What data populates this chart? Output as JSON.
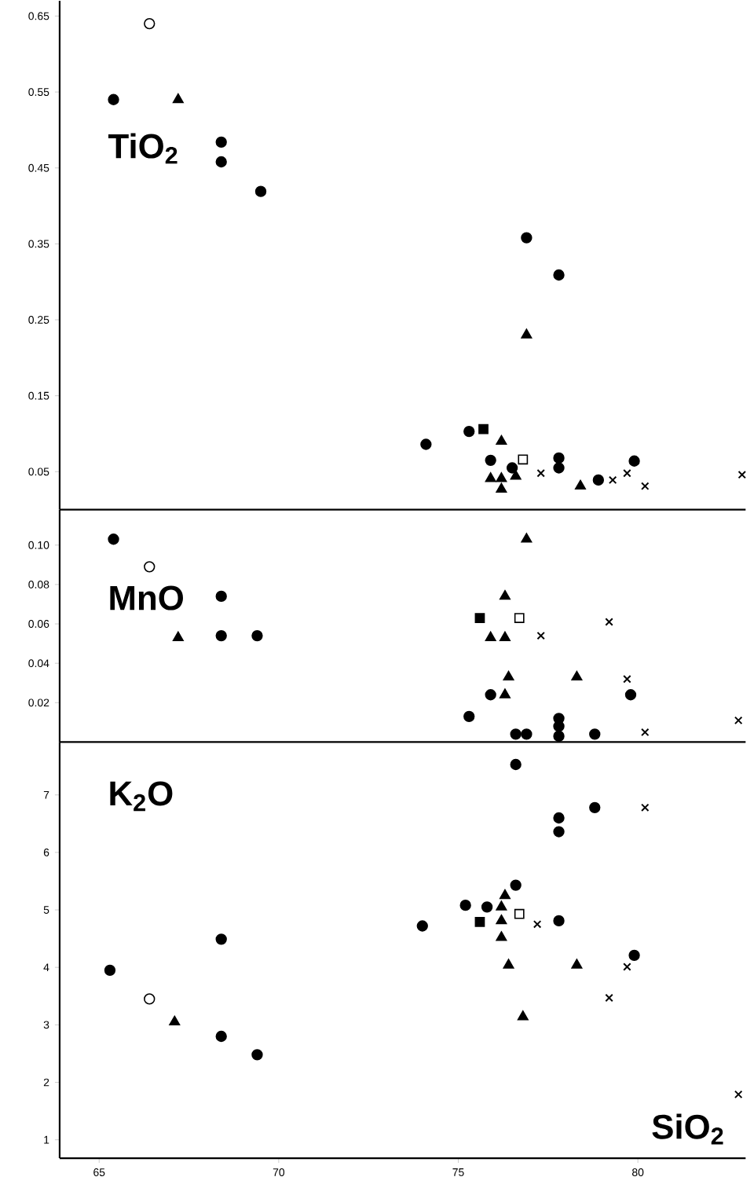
{
  "chart_data": [
    {
      "type": "scatter",
      "ylabel": "TiO$_{2}$",
      "xlim": [
        63.9,
        83.0
      ],
      "ylim": [
        0,
        0.67
      ],
      "yticks": [
        0.05,
        0.15,
        0.25,
        0.35,
        0.45,
        0.55,
        0.65
      ],
      "tick_labels": "y",
      "series": [
        {
          "marker": "circle",
          "color": "#000000",
          "x": [
            65.4,
            68.4,
            68.4,
            69.5,
            76.9,
            77.8,
            74.1,
            75.3,
            75.9,
            76.5,
            77.8,
            77.8,
            78.9,
            79.9
          ],
          "values": [
            0.54,
            0.484,
            0.458,
            0.419,
            0.358,
            0.309,
            0.086,
            0.103,
            0.065,
            0.055,
            0.068,
            0.055,
            0.039,
            0.064
          ]
        },
        {
          "marker": "circle",
          "color": "#ffffff",
          "x": [
            66.4
          ],
          "values": [
            0.64
          ]
        },
        {
          "marker": "triangle",
          "color": "#000000",
          "x": [
            67.2,
            76.9,
            76.2,
            75.9,
            76.2,
            76.2,
            76.6,
            78.4
          ],
          "values": [
            0.54,
            0.23,
            0.09,
            0.041,
            0.041,
            0.027,
            0.044,
            0.031
          ]
        },
        {
          "marker": "square",
          "color": "#000000",
          "x": [
            75.7
          ],
          "values": [
            0.106
          ]
        },
        {
          "marker": "square",
          "color": "#ffffff",
          "x": [
            76.8
          ],
          "values": [
            0.066
          ]
        },
        {
          "marker": "cross",
          "color": "#000000",
          "x": [
            77.3,
            79.3,
            79.7,
            80.2,
            82.9
          ],
          "values": [
            0.048,
            0.039,
            0.048,
            0.031,
            0.046
          ]
        }
      ]
    },
    {
      "type": "scatter",
      "ylabel": "MnO",
      "xlim": [
        63.9,
        83.0
      ],
      "ylim": [
        0,
        0.118
      ],
      "yticks": [
        0.02,
        0.04,
        0.06,
        0.08,
        {
          "value": 0.1,
          "label": "0.10"
        }
      ],
      "tick_labels": "y",
      "series": [
        {
          "marker": "circle",
          "color": "#000000",
          "x": [
            65.4,
            68.4,
            68.4,
            69.4,
            75.9,
            79.8,
            75.3,
            76.6,
            76.9,
            77.8,
            77.8,
            77.8,
            78.8
          ],
          "values": [
            0.103,
            0.074,
            0.054,
            0.054,
            0.024,
            0.024,
            0.013,
            0.004,
            0.004,
            0.012,
            0.008,
            0.003,
            0.004
          ]
        },
        {
          "marker": "circle",
          "color": "#ffffff",
          "x": [
            66.4
          ],
          "values": [
            0.089
          ]
        },
        {
          "marker": "triangle",
          "color": "#000000",
          "x": [
            67.2,
            76.9,
            76.3,
            75.9,
            76.3,
            76.4,
            78.3,
            76.3
          ],
          "values": [
            0.053,
            0.103,
            0.074,
            0.053,
            0.053,
            0.033,
            0.033,
            0.024
          ]
        },
        {
          "marker": "square",
          "color": "#000000",
          "x": [
            75.6
          ],
          "values": [
            0.063
          ]
        },
        {
          "marker": "square",
          "color": "#ffffff",
          "x": [
            76.7
          ],
          "values": [
            0.063
          ]
        },
        {
          "marker": "cross",
          "color": "#000000",
          "x": [
            77.3,
            79.2,
            79.7,
            80.2,
            82.8
          ],
          "values": [
            0.054,
            0.061,
            0.032,
            0.005,
            0.011
          ]
        }
      ]
    },
    {
      "type": "scatter",
      "ylabel": "K$_{2}$O",
      "xlabel": "SiO$_{2}$",
      "xlim": [
        63.9,
        83.0
      ],
      "ylim": [
        0.68,
        7.92
      ],
      "xticks": [
        65,
        70,
        75,
        80
      ],
      "yticks": [
        1,
        2,
        3,
        4,
        5,
        6,
        7
      ],
      "series": [
        {
          "marker": "circle",
          "color": "#000000",
          "x": [
            76.6,
            78.8,
            77.8,
            77.8,
            76.6,
            75.2,
            75.8,
            74.0,
            77.8,
            68.4,
            79.9,
            65.3,
            68.4,
            69.4
          ],
          "values": [
            7.53,
            6.78,
            6.6,
            6.36,
            5.43,
            5.08,
            5.05,
            4.72,
            4.81,
            4.49,
            4.21,
            3.95,
            2.8,
            2.48
          ]
        },
        {
          "marker": "circle",
          "color": "#ffffff",
          "x": [
            66.4
          ],
          "values": [
            3.45
          ]
        },
        {
          "marker": "triangle",
          "color": "#000000",
          "x": [
            76.3,
            76.2,
            76.2,
            76.2,
            76.4,
            78.3,
            67.1,
            76.8
          ],
          "values": [
            5.25,
            5.05,
            4.81,
            4.52,
            4.04,
            4.04,
            3.05,
            3.14
          ]
        },
        {
          "marker": "square",
          "color": "#000000",
          "x": [
            75.6
          ],
          "values": [
            4.79
          ]
        },
        {
          "marker": "square",
          "color": "#ffffff",
          "x": [
            76.7
          ],
          "values": [
            4.93
          ]
        },
        {
          "marker": "cross",
          "color": "#000000",
          "x": [
            80.2,
            77.2,
            79.7,
            79.2,
            82.8
          ],
          "values": [
            6.78,
            4.75,
            4.01,
            3.47,
            1.79
          ]
        }
      ]
    }
  ]
}
